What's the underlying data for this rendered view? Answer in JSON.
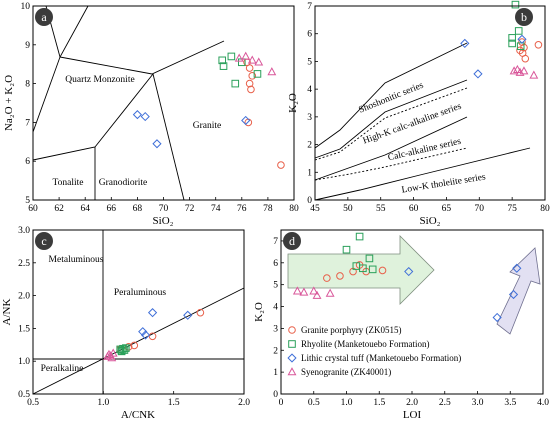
{
  "colors": {
    "granite_porphyry": "#e8604a",
    "rhyolite": "#2aa05a",
    "lithic_tuff": "#3f6fd8",
    "syenogranite": "#d9579a",
    "arrow_green": "#dff2dc",
    "arrow_purple": "#e2e0f2"
  },
  "chart_data": [
    {
      "panel": "a",
      "type": "scatter",
      "x_axis_label": "SiO₂",
      "y_axis_label": "Na₂O + K₂O",
      "xlim": [
        60,
        80
      ],
      "ylim": [
        5,
        10
      ],
      "x_ticks": [
        60,
        62,
        64,
        66,
        68,
        70,
        72,
        74,
        76,
        78,
        80
      ],
      "y_ticks": [
        5,
        6,
        7,
        8,
        9,
        10
      ],
      "fields": [
        "Quartz Monzonite",
        "Granite",
        "Tonalite",
        "Granodiorite"
      ],
      "series": [
        {
          "name": "Granite porphyry (ZK0515)",
          "marker": "circle",
          "points": [
            [
              76.4,
              8.55
            ],
            [
              76.6,
              8.4
            ],
            [
              76.8,
              8.2
            ],
            [
              76.6,
              8.0
            ],
            [
              76.7,
              7.85
            ],
            [
              76.5,
              7.0
            ],
            [
              79.0,
              5.9
            ]
          ]
        },
        {
          "name": "Rhyolite (Manketouebo Formation)",
          "marker": "square",
          "points": [
            [
              74.5,
              8.6
            ],
            [
              74.6,
              8.45
            ],
            [
              75.2,
              8.7
            ],
            [
              76.0,
              8.55
            ],
            [
              77.2,
              8.25
            ],
            [
              75.5,
              8.0
            ]
          ]
        },
        {
          "name": "Lithic crystal tuff (Manketouebo Formation)",
          "marker": "diamond",
          "points": [
            [
              68.0,
              7.2
            ],
            [
              68.6,
              7.15
            ],
            [
              69.5,
              6.45
            ],
            [
              76.3,
              7.05
            ]
          ]
        },
        {
          "name": "Syenogranite (ZK40001)",
          "marker": "triangle",
          "points": [
            [
              75.8,
              8.65
            ],
            [
              76.3,
              8.7
            ],
            [
              76.8,
              8.6
            ],
            [
              77.3,
              8.55
            ],
            [
              78.3,
              8.3
            ]
          ]
        }
      ]
    },
    {
      "panel": "b",
      "type": "scatter",
      "x_axis_label": "SiO₂",
      "y_axis_label": "K₂O",
      "xlim": [
        45,
        80
      ],
      "ylim": [
        0,
        7
      ],
      "x_ticks": [
        45,
        50,
        55,
        60,
        65,
        70,
        75,
        80
      ],
      "y_ticks": [
        0,
        1,
        2,
        3,
        4,
        5,
        6,
        7
      ],
      "fields": [
        "Shoshonitic series",
        "High-K calc-alkaline series",
        "Calc-alkaline series",
        "Low-K tholeiite series"
      ],
      "series": [
        {
          "name": "Granite porphyry (ZK0515)",
          "marker": "circle",
          "points": [
            [
              76.5,
              5.7
            ],
            [
              76.8,
              5.5
            ],
            [
              76.6,
              5.3
            ],
            [
              77.0,
              5.1
            ],
            [
              76.2,
              5.4
            ],
            [
              79.0,
              5.6
            ]
          ]
        },
        {
          "name": "Rhyolite (Manketouebo Formation)",
          "marker": "square",
          "points": [
            [
              75.5,
              7.05
            ],
            [
              77.0,
              6.6
            ],
            [
              76.0,
              6.1
            ],
            [
              75.0,
              5.85
            ],
            [
              75.0,
              5.65
            ],
            [
              76.3,
              5.55
            ]
          ]
        },
        {
          "name": "Lithic crystal tuff (Manketouebo Formation)",
          "marker": "diamond",
          "points": [
            [
              67.8,
              5.65
            ],
            [
              69.8,
              4.55
            ],
            [
              76.5,
              5.8
            ]
          ]
        },
        {
          "name": "Syenogranite (ZK40001)",
          "marker": "triangle",
          "points": [
            [
              75.3,
              4.65
            ],
            [
              75.8,
              4.7
            ],
            [
              76.2,
              4.6
            ],
            [
              76.8,
              4.65
            ],
            [
              78.3,
              4.5
            ]
          ]
        }
      ]
    },
    {
      "panel": "c",
      "type": "scatter",
      "x_axis_label": "A/CNK",
      "y_axis_label": "A/NK",
      "xlim": [
        0.5,
        2.0
      ],
      "ylim": [
        0.5,
        3.0
      ],
      "x_ticks": [
        0.5,
        1.0,
        1.5,
        2.0
      ],
      "y_ticks": [
        0.5,
        1.0,
        1.5,
        2.0,
        2.5,
        3.0
      ],
      "fields": [
        "Metaluminous",
        "Peraluminous",
        "Peraluminous"
      ],
      "series": [
        {
          "name": "Granite porphyry (ZK0515)",
          "marker": "circle",
          "points": [
            [
              1.69,
              1.74
            ],
            [
              1.35,
              1.38
            ],
            [
              1.22,
              1.24
            ],
            [
              1.18,
              1.22
            ],
            [
              1.12,
              1.18
            ]
          ]
        },
        {
          "name": "Rhyolite (Manketouebo Formation)",
          "marker": "square",
          "points": [
            [
              1.12,
              1.18
            ],
            [
              1.13,
              1.16
            ],
            [
              1.14,
              1.19
            ],
            [
              1.15,
              1.17
            ],
            [
              1.16,
              1.2
            ],
            [
              1.13,
              1.15
            ]
          ]
        },
        {
          "name": "Lithic crystal tuff (Manketouebo Formation)",
          "marker": "diamond",
          "points": [
            [
              1.35,
              1.74
            ],
            [
              1.6,
              1.7
            ],
            [
              1.28,
              1.45
            ],
            [
              1.3,
              1.4
            ]
          ]
        },
        {
          "name": "Syenogranite (ZK40001)",
          "marker": "triangle",
          "points": [
            [
              1.04,
              1.1
            ],
            [
              1.05,
              1.08
            ],
            [
              1.06,
              1.05
            ],
            [
              1.03,
              1.07
            ],
            [
              1.07,
              1.12
            ]
          ]
        }
      ]
    },
    {
      "panel": "d",
      "type": "scatter",
      "x_axis_label": "LOI",
      "y_axis_label": "K₂O",
      "xlim": [
        0,
        4.0
      ],
      "ylim": [
        0,
        7.5
      ],
      "x_ticks": [
        0,
        0.5,
        1.0,
        1.5,
        2.0,
        2.5,
        3.0,
        3.5,
        4.0
      ],
      "y_ticks": [
        0,
        1,
        2,
        3,
        4,
        5,
        6,
        7
      ],
      "series": [
        {
          "name": "Granite porphyry (ZK0515)",
          "marker": "circle",
          "points": [
            [
              0.7,
              5.3
            ],
            [
              0.9,
              5.4
            ],
            [
              1.1,
              5.6
            ],
            [
              1.3,
              5.6
            ],
            [
              1.55,
              5.65
            ],
            [
              1.2,
              5.9
            ]
          ]
        },
        {
          "name": "Rhyolite (Manketouebo Formation)",
          "marker": "square",
          "points": [
            [
              1.2,
              7.2
            ],
            [
              1.0,
              6.6
            ],
            [
              1.35,
              6.2
            ],
            [
              1.15,
              5.85
            ],
            [
              1.25,
              5.75
            ],
            [
              1.4,
              5.7
            ]
          ]
        },
        {
          "name": "Lithic crystal tuff (Manketouebo Formation)",
          "marker": "diamond",
          "points": [
            [
              1.95,
              5.6
            ],
            [
              3.6,
              5.75
            ],
            [
              3.55,
              4.55
            ],
            [
              3.3,
              3.5
            ]
          ]
        },
        {
          "name": "Syenogranite (ZK40001)",
          "marker": "triangle",
          "points": [
            [
              0.25,
              4.7
            ],
            [
              0.35,
              4.65
            ],
            [
              0.5,
              4.7
            ],
            [
              0.55,
              4.5
            ],
            [
              0.75,
              4.6
            ]
          ]
        }
      ]
    }
  ]
}
